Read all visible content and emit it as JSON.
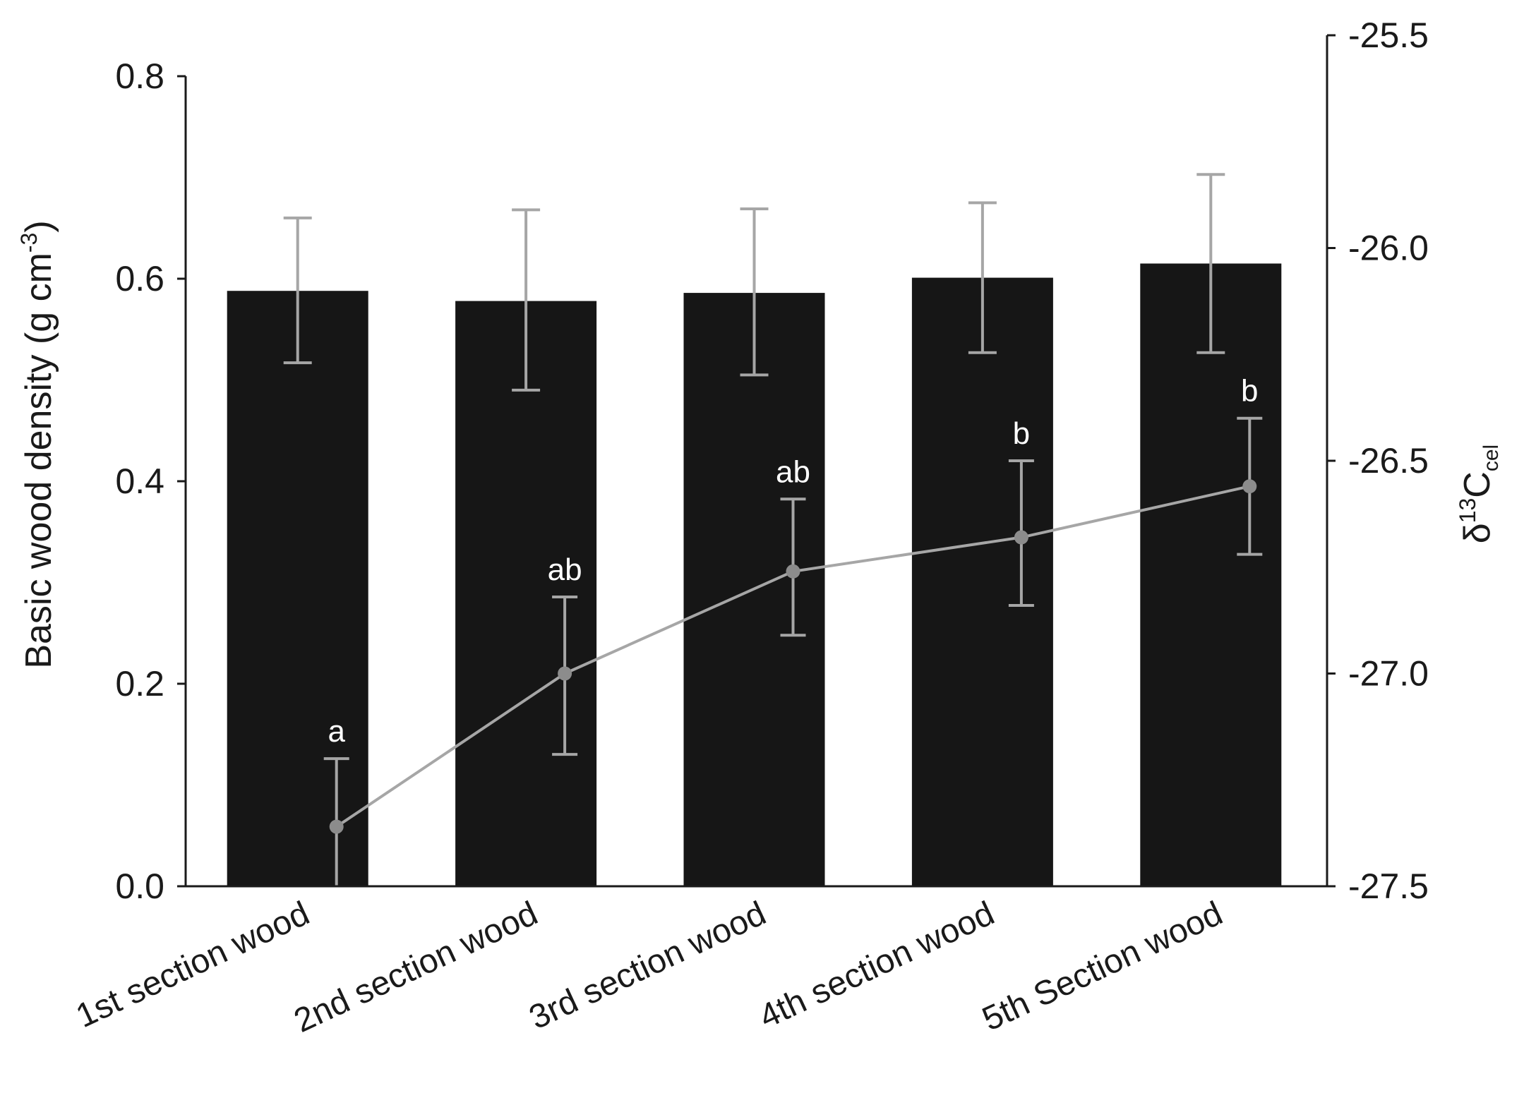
{
  "chart_data": {
    "type": "bar",
    "categories": [
      "1st section wood",
      "2nd section wood",
      "3rd section wood",
      "4th section wood",
      "5th Section wood"
    ],
    "left_axis": {
      "label_text": "Basic wood density (g cm",
      "label_sup": "-3",
      "label_close": ")",
      "ylim": [
        0.0,
        0.8
      ],
      "ticks": [
        "0.0",
        "0.2",
        "0.4",
        "0.6",
        "0.8"
      ]
    },
    "right_axis": {
      "label_delta": "δ",
      "label_sup": "13",
      "label_c": "C",
      "label_sub": "cel",
      "ylim": [
        -27.5,
        -25.5
      ],
      "ticks": [
        "-27.5",
        "-27.0",
        "-26.5",
        "-26.0",
        "-25.5"
      ]
    },
    "series": [
      {
        "axis": "left",
        "type": "bar",
        "values": [
          0.588,
          0.578,
          0.586,
          0.601,
          0.615
        ],
        "error_upper": [
          0.66,
          0.668,
          0.669,
          0.675,
          0.703
        ],
        "error_lower": [
          0.517,
          0.49,
          0.505,
          0.527,
          0.527
        ]
      },
      {
        "axis": "right",
        "type": "line",
        "values": [
          -27.36,
          -27.0,
          -26.76,
          -26.68,
          -26.56
        ],
        "error_upper": [
          -27.2,
          -26.82,
          -26.59,
          -26.5,
          -26.4
        ],
        "error_lower": [
          -27.5,
          -27.19,
          -26.91,
          -26.84,
          -26.72
        ],
        "significance": [
          "a",
          "ab",
          "ab",
          "b",
          "b"
        ]
      }
    ],
    "colors": {
      "bar": "#161616",
      "bar_error": "#a6a6a6",
      "line": "#a6a6a6",
      "marker": "#8c8c8c",
      "axis": "#1a1a1a"
    },
    "grid": false
  }
}
